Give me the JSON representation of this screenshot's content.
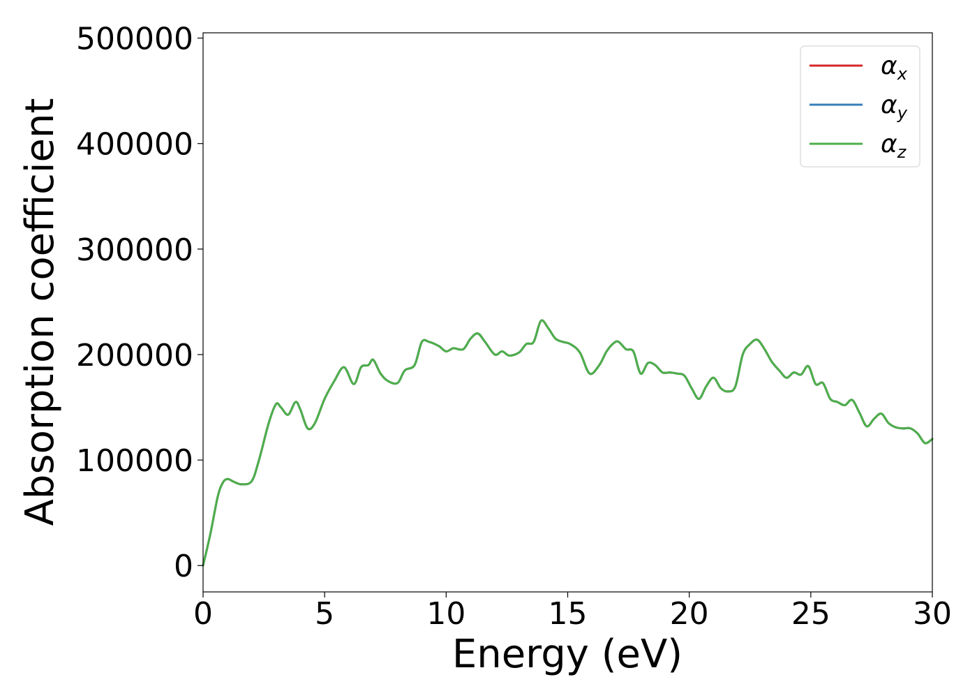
{
  "chart_data": {
    "type": "line",
    "title": "",
    "xlabel": "Energy (eV)",
    "ylabel": "Absorption coefficient",
    "xlim": [
      0,
      30
    ],
    "ylim": [
      -25000,
      505000
    ],
    "x_ticks": [
      0,
      5,
      10,
      15,
      20,
      25,
      30
    ],
    "y_ticks": [
      0,
      100000,
      200000,
      300000,
      400000,
      500000
    ],
    "x_tick_labels": [
      "0",
      "5",
      "10",
      "15",
      "20",
      "25",
      "30"
    ],
    "y_tick_labels": [
      "0",
      "100000",
      "200000",
      "300000",
      "400000",
      "500000"
    ],
    "grid": false,
    "legend_position": "top-right",
    "series": [
      {
        "name": "αx",
        "symbol": "α",
        "subscript": "x",
        "color": "#d62728",
        "x": [
          0,
          0.3,
          0.6,
          0.8,
          1.0,
          1.3,
          1.6,
          2.0,
          2.3,
          2.7,
          3.0,
          3.2,
          3.5,
          3.8,
          4.0,
          4.3,
          4.6,
          5.0,
          5.4,
          5.8,
          6.2,
          6.5,
          6.8,
          7.0,
          7.3,
          7.6,
          8.0,
          8.3,
          8.7,
          9.0,
          9.3,
          9.7,
          10.0,
          10.3,
          10.7,
          11.0,
          11.3,
          11.6,
          12.0,
          12.3,
          12.6,
          13.0,
          13.3,
          13.6,
          13.9,
          14.2,
          14.5,
          14.8,
          15.1,
          15.5,
          15.9,
          16.3,
          16.6,
          16.9,
          17.1,
          17.4,
          17.7,
          18.0,
          18.3,
          18.6,
          18.9,
          19.2,
          19.5,
          19.8,
          20.1,
          20.4,
          20.7,
          21.0,
          21.3,
          21.6,
          21.9,
          22.2,
          22.5,
          22.8,
          23.1,
          23.4,
          23.7,
          24.0,
          24.3,
          24.6,
          24.9,
          25.2,
          25.5,
          25.8,
          26.1,
          26.4,
          26.7,
          27.0,
          27.3,
          27.6,
          27.9,
          28.2,
          28.5,
          28.8,
          29.1,
          29.4,
          29.7,
          30.0
        ],
        "y": [
          0,
          30000,
          65000,
          78000,
          82000,
          79000,
          77000,
          80000,
          100000,
          135000,
          153000,
          150000,
          143000,
          155000,
          148000,
          130000,
          135000,
          158000,
          175000,
          188000,
          172000,
          188000,
          190000,
          195000,
          182000,
          175000,
          173000,
          185000,
          190000,
          212000,
          212000,
          208000,
          203000,
          206000,
          205000,
          215000,
          220000,
          212000,
          200000,
          203000,
          199000,
          202000,
          210000,
          212000,
          232000,
          225000,
          215000,
          212000,
          210000,
          202000,
          182000,
          190000,
          203000,
          211000,
          212000,
          205000,
          203000,
          182000,
          192000,
          190000,
          183000,
          183000,
          182000,
          180000,
          168000,
          158000,
          170000,
          178000,
          168000,
          165000,
          170000,
          200000,
          210000,
          214000,
          205000,
          193000,
          185000,
          178000,
          183000,
          181000,
          189000,
          172000,
          173000,
          158000,
          155000,
          152000,
          157000,
          145000,
          132000,
          139000,
          144000,
          135000,
          131000,
          130000,
          130000,
          125000,
          116000,
          120000
        ]
      },
      {
        "name": "αy",
        "symbol": "α",
        "subscript": "y",
        "color": "#377eb8",
        "x": [
          0,
          0.3,
          0.6,
          0.8,
          1.0,
          1.3,
          1.6,
          2.0,
          2.3,
          2.7,
          3.0,
          3.2,
          3.5,
          3.8,
          4.0,
          4.3,
          4.6,
          5.0,
          5.4,
          5.8,
          6.2,
          6.5,
          6.8,
          7.0,
          7.3,
          7.6,
          8.0,
          8.3,
          8.7,
          9.0,
          9.3,
          9.7,
          10.0,
          10.3,
          10.7,
          11.0,
          11.3,
          11.6,
          12.0,
          12.3,
          12.6,
          13.0,
          13.3,
          13.6,
          13.9,
          14.2,
          14.5,
          14.8,
          15.1,
          15.5,
          15.9,
          16.3,
          16.6,
          16.9,
          17.1,
          17.4,
          17.7,
          18.0,
          18.3,
          18.6,
          18.9,
          19.2,
          19.5,
          19.8,
          20.1,
          20.4,
          20.7,
          21.0,
          21.3,
          21.6,
          21.9,
          22.2,
          22.5,
          22.8,
          23.1,
          23.4,
          23.7,
          24.0,
          24.3,
          24.6,
          24.9,
          25.2,
          25.5,
          25.8,
          26.1,
          26.4,
          26.7,
          27.0,
          27.3,
          27.6,
          27.9,
          28.2,
          28.5,
          28.8,
          29.1,
          29.4,
          29.7,
          30.0
        ],
        "y": [
          0,
          30000,
          65000,
          78000,
          82000,
          79000,
          77000,
          80000,
          100000,
          135000,
          153000,
          150000,
          143000,
          155000,
          148000,
          130000,
          135000,
          158000,
          175000,
          188000,
          172000,
          188000,
          190000,
          195000,
          182000,
          175000,
          173000,
          185000,
          190000,
          212000,
          212000,
          208000,
          203000,
          206000,
          205000,
          215000,
          220000,
          212000,
          200000,
          203000,
          199000,
          202000,
          210000,
          212000,
          232000,
          225000,
          215000,
          212000,
          210000,
          202000,
          182000,
          190000,
          203000,
          211000,
          212000,
          205000,
          203000,
          182000,
          192000,
          190000,
          183000,
          183000,
          182000,
          180000,
          168000,
          158000,
          170000,
          178000,
          168000,
          165000,
          170000,
          200000,
          210000,
          214000,
          205000,
          193000,
          185000,
          178000,
          183000,
          181000,
          189000,
          172000,
          173000,
          158000,
          155000,
          152000,
          157000,
          145000,
          132000,
          139000,
          144000,
          135000,
          131000,
          130000,
          130000,
          125000,
          116000,
          120000
        ]
      },
      {
        "name": "αz",
        "symbol": "α",
        "subscript": "z",
        "color": "#4daf4a",
        "x": [
          0,
          0.3,
          0.6,
          0.8,
          1.0,
          1.3,
          1.6,
          2.0,
          2.3,
          2.7,
          3.0,
          3.2,
          3.5,
          3.8,
          4.0,
          4.3,
          4.6,
          5.0,
          5.4,
          5.8,
          6.2,
          6.5,
          6.8,
          7.0,
          7.3,
          7.6,
          8.0,
          8.3,
          8.7,
          9.0,
          9.3,
          9.7,
          10.0,
          10.3,
          10.7,
          11.0,
          11.3,
          11.6,
          12.0,
          12.3,
          12.6,
          13.0,
          13.3,
          13.6,
          13.9,
          14.2,
          14.5,
          14.8,
          15.1,
          15.5,
          15.9,
          16.3,
          16.6,
          16.9,
          17.1,
          17.4,
          17.7,
          18.0,
          18.3,
          18.6,
          18.9,
          19.2,
          19.5,
          19.8,
          20.1,
          20.4,
          20.7,
          21.0,
          21.3,
          21.6,
          21.9,
          22.2,
          22.5,
          22.8,
          23.1,
          23.4,
          23.7,
          24.0,
          24.3,
          24.6,
          24.9,
          25.2,
          25.5,
          25.8,
          26.1,
          26.4,
          26.7,
          27.0,
          27.3,
          27.6,
          27.9,
          28.2,
          28.5,
          28.8,
          29.1,
          29.4,
          29.7,
          30.0
        ],
        "y": [
          0,
          30000,
          65000,
          78000,
          82000,
          79000,
          77000,
          80000,
          100000,
          135000,
          153000,
          150000,
          143000,
          155000,
          148000,
          130000,
          135000,
          158000,
          175000,
          188000,
          172000,
          188000,
          190000,
          195000,
          182000,
          175000,
          173000,
          185000,
          190000,
          212000,
          212000,
          208000,
          203000,
          206000,
          205000,
          215000,
          220000,
          212000,
          200000,
          203000,
          199000,
          202000,
          210000,
          212000,
          232000,
          225000,
          215000,
          212000,
          210000,
          202000,
          182000,
          190000,
          203000,
          211000,
          212000,
          205000,
          203000,
          182000,
          192000,
          190000,
          183000,
          183000,
          182000,
          180000,
          168000,
          158000,
          170000,
          178000,
          168000,
          165000,
          170000,
          200000,
          210000,
          214000,
          205000,
          193000,
          185000,
          178000,
          183000,
          181000,
          189000,
          172000,
          173000,
          158000,
          155000,
          152000,
          157000,
          145000,
          132000,
          139000,
          144000,
          135000,
          131000,
          130000,
          130000,
          125000,
          116000,
          120000
        ]
      }
    ]
  }
}
